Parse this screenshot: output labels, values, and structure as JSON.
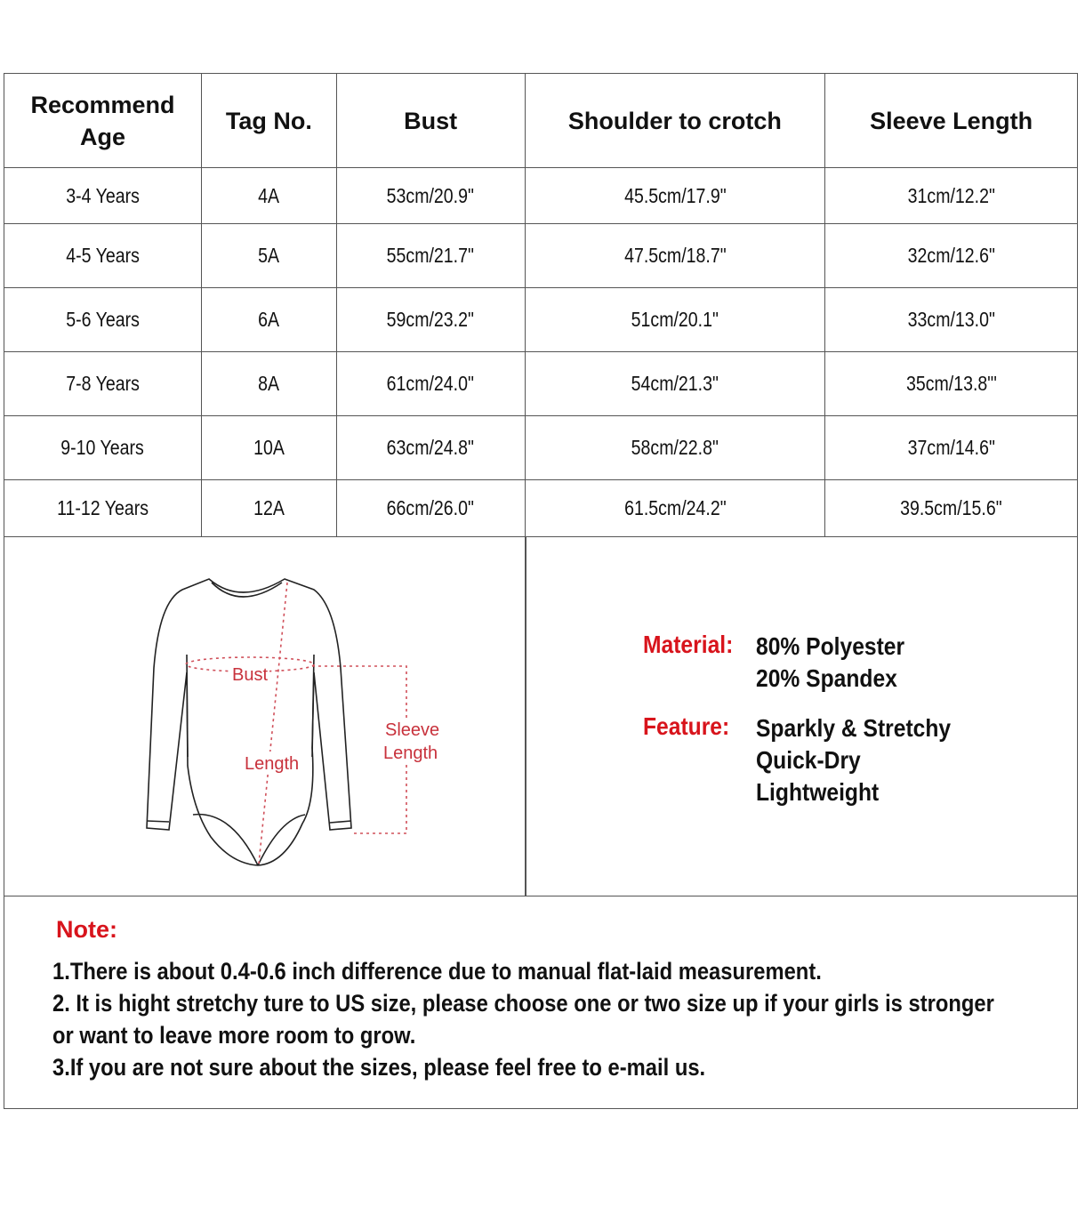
{
  "table": {
    "headers": [
      "Recommend Age",
      "Tag No.",
      "Bust",
      "Shoulder to crotch",
      "Sleeve Length"
    ],
    "rows": [
      [
        "3-4 Years",
        "4A",
        "53cm/20.9\"",
        "45.5cm/17.9\"",
        "31cm/12.2\""
      ],
      [
        "4-5 Years",
        "5A",
        "55cm/21.7\"",
        "47.5cm/18.7\"",
        "32cm/12.6\""
      ],
      [
        "5-6 Years",
        "6A",
        "59cm/23.2\"",
        "51cm/20.1\"",
        "33cm/13.0\""
      ],
      [
        "7-8 Years",
        "8A",
        "61cm/24.0\"",
        "54cm/21.3\"",
        "35cm/13.8\"'"
      ],
      [
        "9-10 Years",
        "10A",
        "63cm/24.8\"",
        "58cm/22.8\"",
        "37cm/14.6\""
      ],
      [
        "11-12 Years",
        "12A",
        "66cm/26.0\"",
        "61.5cm/24.2\"",
        "39.5cm/15.6\""
      ]
    ]
  },
  "diagram": {
    "bust": "Bust",
    "length": "Length",
    "sleeve_1": "Sleeve",
    "sleeve_2": "Length"
  },
  "specs": {
    "material_label": "Material:",
    "material": [
      "80% Polyester",
      "20% Spandex"
    ],
    "feature_label": "Feature:",
    "feature": [
      "Sparkly & Stretchy",
      "Quick-Dry",
      "Lightweight"
    ]
  },
  "note": {
    "title": "Note:",
    "lines": [
      "1.There is about 0.4-0.6 inch difference due to manual flat-laid measurement.",
      "2. It is hight stretchy ture to US size, please choose one or two size up if your girls is stronger",
      "or want to leave more room to grow.",
      "3.If you are not sure about the sizes, please feel free to e-mail us."
    ]
  },
  "colors": {
    "accent_red": "#d8141c",
    "border": "#555555"
  }
}
